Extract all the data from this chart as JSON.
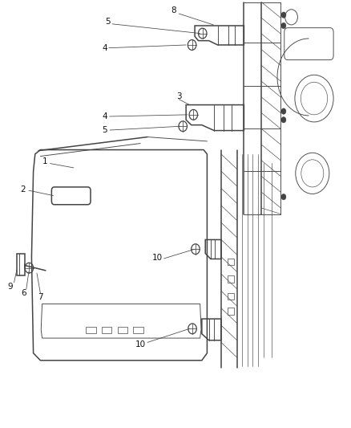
{
  "bg_color": "#ffffff",
  "line_color": "#444444",
  "label_color": "#111111",
  "lw_main": 1.1,
  "lw_thin": 0.65,
  "lw_hatch": 0.45,
  "label_fontsize": 7.5
}
